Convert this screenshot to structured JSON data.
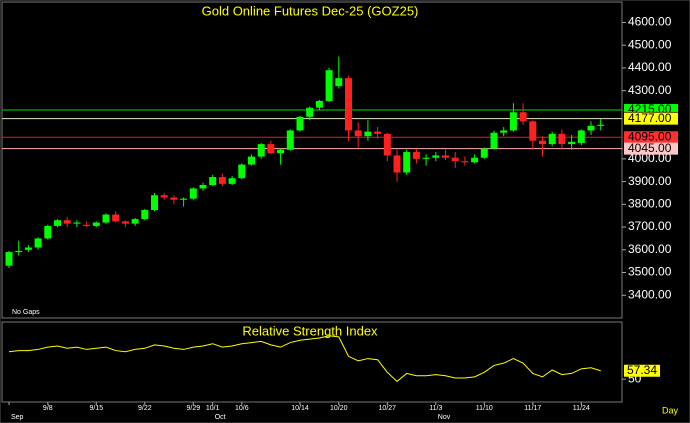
{
  "chart_data": [
    {
      "type": "candlestick",
      "title": "Gold Online Futures Dec-25 (GOZ25)",
      "gap_mode": "No Gaps",
      "interval": "Day",
      "categories": [
        "",
        null,
        null,
        null,
        "9/8",
        null,
        null,
        null,
        null,
        "9/15",
        null,
        null,
        null,
        null,
        "9/22",
        null,
        null,
        null,
        null,
        "9/29",
        null,
        "10/1",
        null,
        null,
        "10/6",
        null,
        null,
        null,
        null,
        null,
        "10/14",
        null,
        null,
        null,
        "10/20",
        null,
        null,
        null,
        null,
        "10/27",
        null,
        null,
        null,
        null,
        "11/3",
        null,
        null,
        null,
        null,
        "11/10",
        null,
        null,
        null,
        null,
        "11/17",
        null,
        null,
        null,
        null,
        "11/24",
        null,
        null
      ],
      "months": [
        "Sep",
        null,
        null,
        null,
        null,
        null,
        null,
        null,
        null,
        null,
        null,
        null,
        null,
        null,
        null,
        null,
        null,
        null,
        null,
        null,
        null,
        "Oct",
        null,
        null,
        null,
        null,
        null,
        null,
        null,
        null,
        null,
        null,
        null,
        null,
        null,
        null,
        null,
        null,
        null,
        null,
        null,
        null,
        null,
        null,
        "Nov",
        null,
        null,
        null,
        null,
        null,
        null,
        null,
        null,
        null,
        null,
        null,
        null,
        null,
        null,
        null,
        null,
        null
      ],
      "open": [
        3530,
        3590,
        3600,
        3610,
        3650,
        3705,
        3730,
        3715,
        3710,
        3705,
        3720,
        3755,
        3725,
        3715,
        3735,
        3775,
        3840,
        3830,
        3820,
        3825,
        3870,
        3885,
        3920,
        3890,
        3915,
        3975,
        4010,
        4065,
        4025,
        4040,
        4125,
        4185,
        4225,
        4255,
        4320,
        4355,
        4125,
        4100,
        4120,
        4110,
        4015,
        3940,
        4030,
        4000,
        4005,
        4015,
        4005,
        3990,
        3985,
        4005,
        4045,
        4115,
        4125,
        4205,
        4165,
        4080,
        4065,
        4110,
        4065,
        4070,
        4125,
        4145
      ],
      "high": [
        3595,
        3640,
        3620,
        3655,
        3710,
        3735,
        3745,
        3730,
        3725,
        3725,
        3760,
        3770,
        3730,
        3740,
        3780,
        3850,
        3850,
        3840,
        3830,
        3875,
        3895,
        3930,
        3935,
        3925,
        3980,
        4020,
        4070,
        4080,
        4045,
        4130,
        4190,
        4230,
        4260,
        4400,
        4450,
        4365,
        4160,
        4170,
        4140,
        4115,
        4040,
        4040,
        4045,
        4020,
        4030,
        4040,
        4030,
        4010,
        4020,
        4050,
        4125,
        4140,
        4245,
        4245,
        4170,
        4100,
        4120,
        4130,
        4105,
        4130,
        4165,
        4175
      ],
      "low": [
        3520,
        3575,
        3590,
        3600,
        3645,
        3700,
        3700,
        3700,
        3700,
        3700,
        3715,
        3720,
        3700,
        3705,
        3730,
        3770,
        3820,
        3800,
        3790,
        3820,
        3860,
        3880,
        3880,
        3885,
        3910,
        3970,
        4000,
        4020,
        3975,
        4035,
        4120,
        4170,
        4215,
        4250,
        4310,
        4080,
        4050,
        4080,
        4090,
        3990,
        3900,
        3930,
        3980,
        3970,
        3990,
        3995,
        3960,
        3970,
        3980,
        4000,
        4040,
        4100,
        4120,
        4150,
        4040,
        4010,
        4055,
        4040,
        4040,
        4060,
        4105,
        4125
      ],
      "close": [
        3590,
        3595,
        3610,
        3650,
        3705,
        3730,
        3715,
        3720,
        3705,
        3720,
        3755,
        3725,
        3715,
        3735,
        3775,
        3840,
        3830,
        3820,
        3825,
        3870,
        3885,
        3920,
        3890,
        3915,
        3975,
        4010,
        4065,
        4025,
        4040,
        4125,
        4185,
        4225,
        4255,
        4390,
        4355,
        4125,
        4100,
        4120,
        4110,
        4015,
        3940,
        4030,
        4000,
        4005,
        4015,
        4005,
        3990,
        3985,
        4005,
        4045,
        4115,
        4125,
        4205,
        4165,
        4080,
        4065,
        4110,
        4065,
        4075,
        4125,
        4145,
        4150
      ],
      "up_color": "#00ff00",
      "down_color": "#ff2020",
      "ylim": [
        3300,
        4690
      ],
      "yticks": [
        {
          "value": 3400,
          "label": "3400.00"
        },
        {
          "value": 3500,
          "label": "3500.00"
        },
        {
          "value": 3600,
          "label": "3600.00"
        },
        {
          "value": 3700,
          "label": "3700.00"
        },
        {
          "value": 3800,
          "label": "3800.00"
        },
        {
          "value": 3900,
          "label": "3900.00"
        },
        {
          "value": 4000,
          "label": "4000.00"
        },
        {
          "value": 4300,
          "label": "4300.00"
        },
        {
          "value": 4400,
          "label": "4400.00"
        },
        {
          "value": 4500,
          "label": "4500.00"
        },
        {
          "value": 4600,
          "label": "4600.00"
        }
      ],
      "hlines": [
        {
          "value": 4215,
          "label": "4215.00",
          "color": "#00e000",
          "label_bg": "#00ff00"
        },
        {
          "value": 4180,
          "label": "4180.00",
          "label_bg": "#000000"
        },
        {
          "value": 4177,
          "label": "4177.00",
          "color": "#e8e8c0",
          "label_bg": "#ffff00"
        },
        {
          "value": 4095,
          "label": "4095.00",
          "color": "#e02020",
          "label_bg": "#ff3030"
        },
        {
          "value": 4045,
          "label": "4045.00",
          "color": "#ffb0b0",
          "label_bg": "#ffc8c8"
        }
      ]
    },
    {
      "type": "line",
      "title": "Relative Strength Index",
      "color": "#ffff00",
      "values": [
        74,
        75,
        75,
        76,
        78,
        79,
        77,
        78,
        76,
        77,
        78,
        75,
        74,
        76,
        77,
        80,
        79,
        77,
        76,
        78,
        79,
        81,
        78,
        79,
        81,
        82,
        83,
        80,
        78,
        82,
        84,
        85,
        86,
        88,
        87,
        70,
        66,
        68,
        67,
        56,
        48,
        55,
        53,
        53,
        54,
        53,
        51,
        51,
        52,
        56,
        62,
        64,
        68,
        64,
        55,
        52,
        58,
        54,
        55,
        59,
        60,
        57.34
      ],
      "ylim": [
        30,
        100
      ],
      "yticks": [
        50
      ]
    }
  ]
}
